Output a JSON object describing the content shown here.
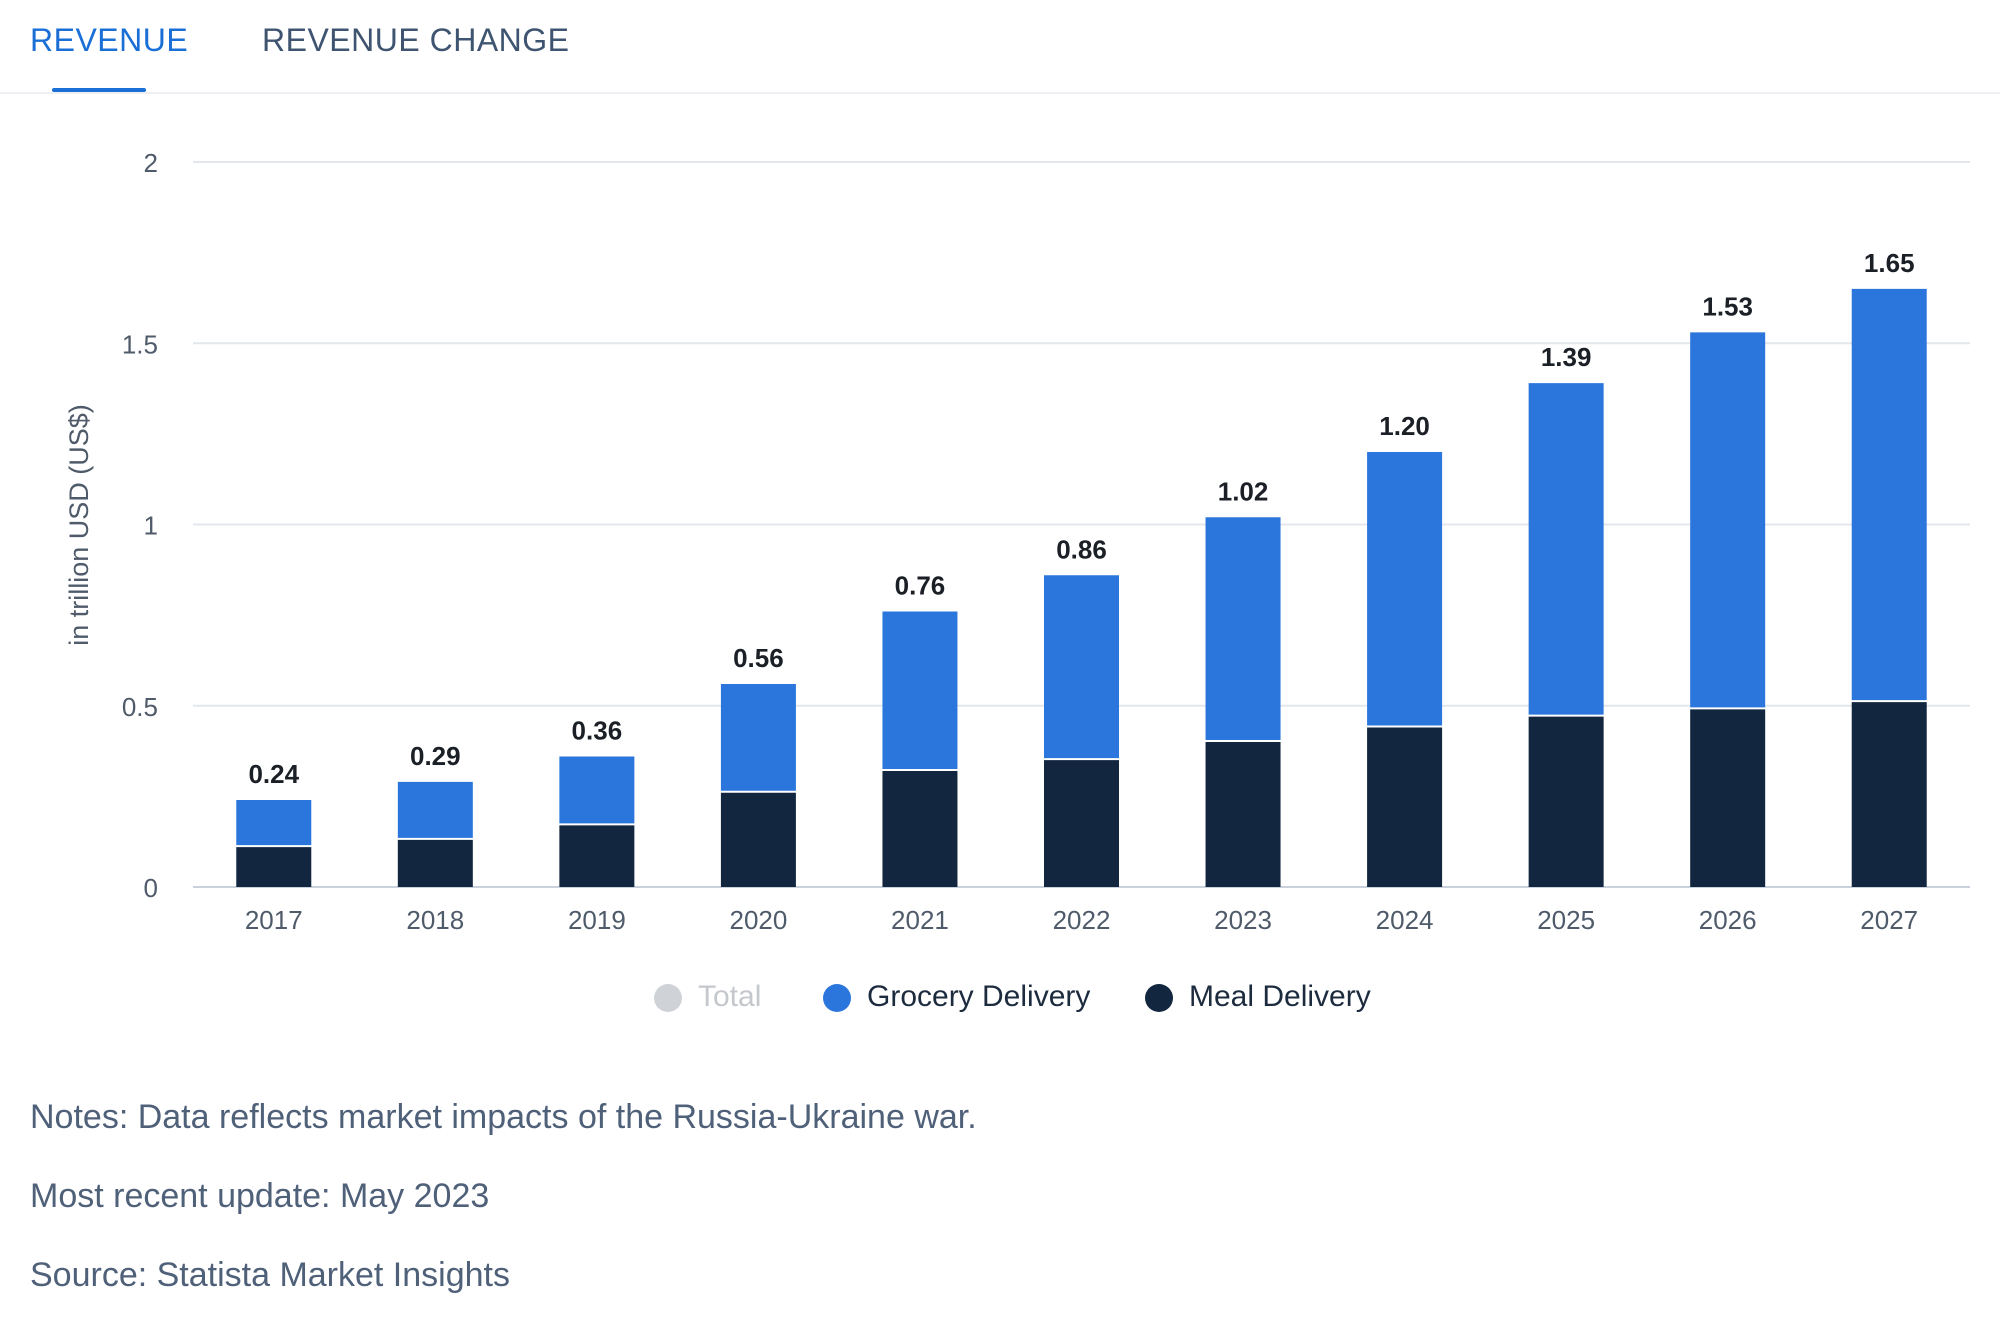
{
  "tabs": [
    {
      "label": "REVENUE",
      "active": true
    },
    {
      "label": "REVENUE CHANGE",
      "active": false
    }
  ],
  "colors": {
    "accent": "#1a6fd6",
    "grocery": "#2a76dc",
    "meal": "#12263f",
    "total_disabled": "#cfd3d8",
    "grid": "#e3e7ec",
    "axis_text": "#4f5b6a"
  },
  "legend": [
    {
      "label": "Total",
      "color": "#cfd3d8",
      "disabled": true
    },
    {
      "label": "Grocery Delivery",
      "color": "#2a76dc",
      "disabled": false
    },
    {
      "label": "Meal Delivery",
      "color": "#12263f",
      "disabled": false
    }
  ],
  "notes": {
    "line1": "Notes: Data reflects market impacts of the Russia-Ukraine war.",
    "line2": "Most recent update: May 2023",
    "line3": "Source: Statista Market Insights"
  },
  "chart_data": {
    "type": "bar",
    "stacked": true,
    "categories": [
      "2017",
      "2018",
      "2019",
      "2020",
      "2021",
      "2022",
      "2023",
      "2024",
      "2025",
      "2026",
      "2027"
    ],
    "series": [
      {
        "name": "Meal Delivery",
        "values": [
          0.11,
          0.13,
          0.17,
          0.26,
          0.32,
          0.35,
          0.4,
          0.44,
          0.47,
          0.49,
          0.51
        ]
      },
      {
        "name": "Grocery Delivery",
        "values": [
          0.13,
          0.16,
          0.19,
          0.3,
          0.44,
          0.51,
          0.62,
          0.76,
          0.92,
          1.04,
          1.14
        ]
      }
    ],
    "totals": [
      0.24,
      0.29,
      0.36,
      0.56,
      0.76,
      0.86,
      1.02,
      1.2,
      1.39,
      1.53,
      1.65
    ],
    "total_labels": [
      "0.24",
      "0.29",
      "0.36",
      "0.56",
      "0.76",
      "0.86",
      "1.02",
      "1.20",
      "1.39",
      "1.53",
      "1.65"
    ],
    "ylabel": "in trillion USD (US$)",
    "xlabel": "",
    "ylim": [
      0,
      2
    ],
    "yticks": [
      0,
      0.5,
      1,
      1.5,
      2
    ],
    "ytick_labels": [
      "0",
      "0.5",
      "1",
      "1.5",
      "2"
    ],
    "grid": true,
    "legend_position": "bottom"
  }
}
